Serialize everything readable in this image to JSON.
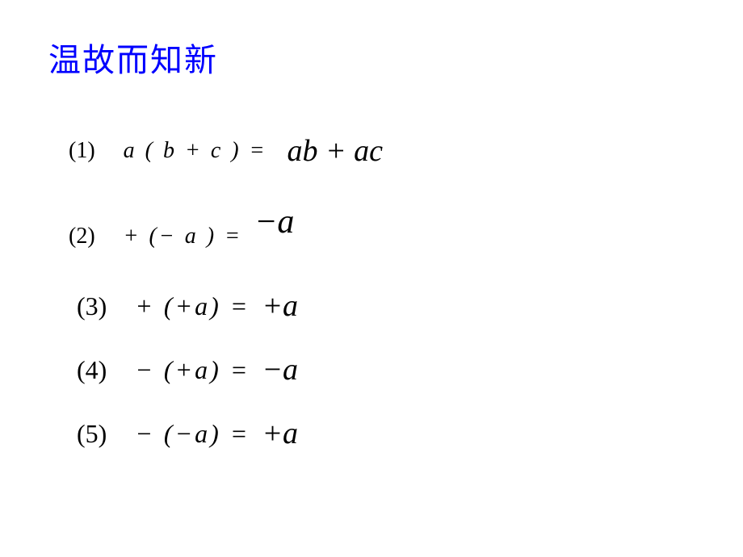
{
  "title": "温故而知新",
  "title_color": "#0000ff",
  "background_color": "#ffffff",
  "text_color": "#000000",
  "equations": [
    {
      "num": "(1)",
      "lhs": "a ( b + c ) =",
      "rhs": "ab + ac",
      "row_class": "eq-row-1"
    },
    {
      "num": "(2)",
      "lhs": "+ (− a ) =",
      "rhs": "−a",
      "row_class": "eq-row-2"
    },
    {
      "num": "(3)",
      "lhs": "+ (+a) =",
      "rhs": "+a",
      "row_class": "eq-row-3"
    },
    {
      "num": "(4)",
      "lhs": "− (+a) =",
      "rhs": "−a",
      "row_class": "eq-row-4"
    },
    {
      "num": "(5)",
      "lhs": "− (−a) =",
      "rhs": "+a",
      "row_class": "eq-row-5"
    }
  ]
}
